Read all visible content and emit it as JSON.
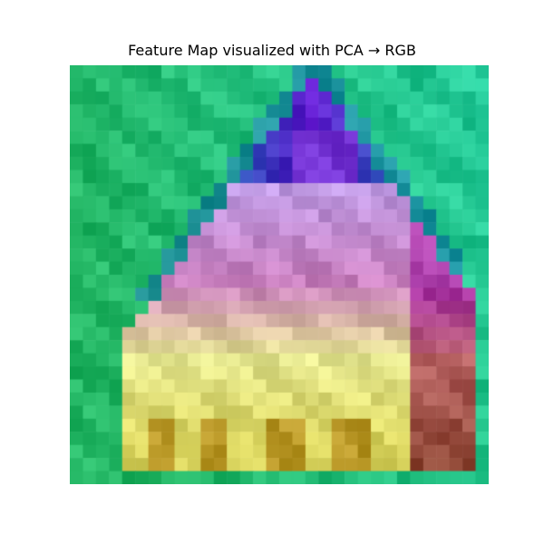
{
  "title": "Feature Map visualized with PCA → RGB",
  "image": {
    "description_icon": "pca-feature-map-image",
    "grid": {
      "rows": 32,
      "cols": 32
    },
    "colors": {
      "background_top": "#2fd6a6",
      "background_left": "#2ec16f",
      "violet": "#6a22d8",
      "lavender": "#c9a6f0",
      "pink": "#d48ac9",
      "magenta": "#b23ab4",
      "yellow_light": "#f0f29b",
      "yellow": "#e5e06a",
      "olive": "#b88d1d",
      "rose": "#c26d6d",
      "brown": "#8f4a35"
    }
  }
}
